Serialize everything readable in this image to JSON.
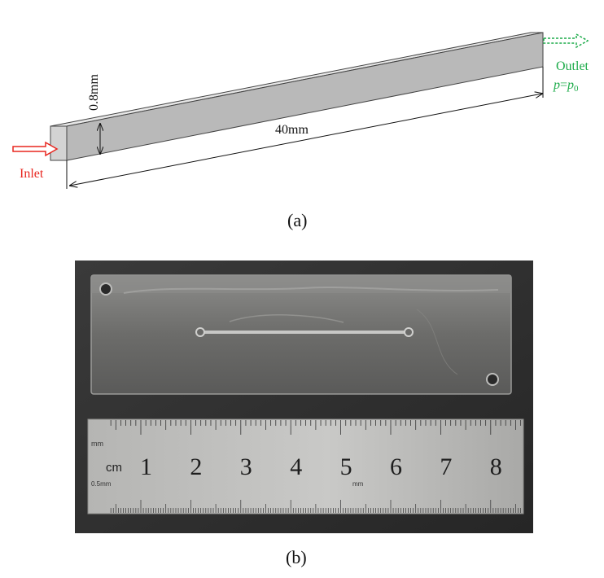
{
  "figure_a": {
    "dimension_height": "0.8mm",
    "dimension_length": "40mm",
    "inlet_label": "Inlet",
    "outlet_label": "Outlet",
    "outlet_condition_var": "p",
    "outlet_condition_eq": "=",
    "outlet_condition_p0_base": "p",
    "outlet_condition_p0_sub": "0",
    "caption": "(a)",
    "colors": {
      "inlet": "#e8261f",
      "outlet": "#1dab4a",
      "channel_top": "#e6e6e6",
      "channel_front": "#b9b9b9",
      "channel_end": "#d3d3d3"
    }
  },
  "figure_b": {
    "caption": "(b)",
    "ruler": {
      "unit_cm": "cm",
      "unit_mm_top": "mm",
      "unit_mm_mid": "mm",
      "unit_half_mm": "0.5mm",
      "numbers": [
        "1",
        "2",
        "3",
        "4",
        "5",
        "6",
        "7",
        "8"
      ]
    }
  }
}
